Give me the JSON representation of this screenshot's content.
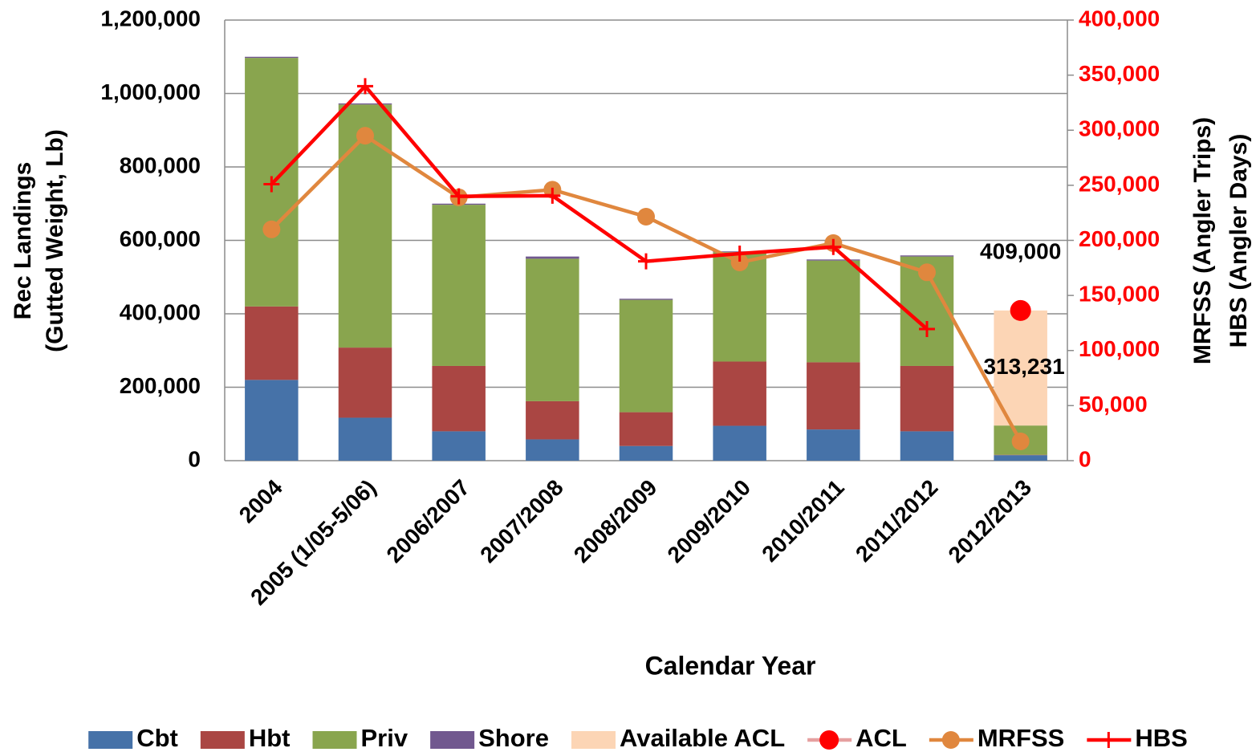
{
  "chart_data": {
    "type": "bar",
    "categories": [
      "2004",
      "2005 (1/05-5/06)",
      "2006/2007",
      "2007/2008",
      "2008/2009",
      "2009/2010",
      "2010/2011",
      "2011/2012",
      "2012/2013"
    ],
    "series": [
      {
        "name": "Cbt",
        "color": "#4672a8",
        "kind": "bar",
        "values": [
          220000,
          117000,
          80000,
          58000,
          40000,
          95000,
          85000,
          80000,
          15000
        ]
      },
      {
        "name": "Hbt",
        "color": "#aa4643",
        "kind": "bar",
        "values": [
          200000,
          191000,
          178000,
          104000,
          92000,
          175000,
          183000,
          178000,
          1000
        ]
      },
      {
        "name": "Priv",
        "color": "#89a54e",
        "kind": "bar",
        "values": [
          677000,
          662000,
          439000,
          388000,
          306000,
          298000,
          277000,
          298000,
          79769
        ]
      },
      {
        "name": "Shore",
        "color": "#71588f",
        "kind": "bar",
        "values": [
          3000,
          3000,
          3000,
          6000,
          3000,
          2000,
          3000,
          3000,
          0
        ]
      },
      {
        "name": "Available ACL",
        "color": "#fcd5b5",
        "kind": "bar",
        "values": [
          null,
          null,
          null,
          null,
          null,
          null,
          null,
          null,
          313231
        ],
        "value_labels": [
          null,
          null,
          null,
          null,
          null,
          null,
          null,
          null,
          "313,231"
        ]
      },
      {
        "name": "ACL",
        "color": "#ff0000",
        "kind": "marker",
        "marker": "circle",
        "values": [
          null,
          null,
          null,
          null,
          null,
          null,
          null,
          null,
          409000
        ],
        "value_labels": [
          null,
          null,
          null,
          null,
          null,
          null,
          null,
          null,
          "409,000"
        ]
      },
      {
        "name": "MRFSS",
        "color": "#e0873e",
        "kind": "line",
        "marker": "circle",
        "axis": "y2",
        "values": [
          210000,
          295000,
          239000,
          246000,
          221500,
          180000,
          197500,
          171000,
          17500
        ]
      },
      {
        "name": "HBS",
        "color": "#ff0000",
        "kind": "line",
        "marker": "plus",
        "axis": "y2",
        "values": [
          251000,
          340000,
          240000,
          240500,
          181000,
          188000,
          194000,
          119500,
          null
        ]
      }
    ],
    "ylim": [
      0,
      1200000
    ],
    "yticks": [
      0,
      {
        "value": 200000,
        "label": "200,000"
      },
      {
        "value": 400000,
        "label": "400,000"
      },
      {
        "value": 600000,
        "label": "600,000"
      },
      {
        "value": 800000,
        "label": "800,000"
      },
      {
        "value": 1000000,
        "label": "1,000,000"
      },
      {
        "value": 1200000,
        "label": "1,200,000"
      }
    ],
    "y2lim": [
      0,
      400000
    ],
    "y2ticks": [
      0,
      {
        "value": 50000,
        "label": "50,000"
      },
      {
        "value": 100000,
        "label": "100,000"
      },
      {
        "value": 150000,
        "label": "150,000"
      },
      {
        "value": 200000,
        "label": "200,000"
      },
      {
        "value": 250000,
        "label": "250,000"
      },
      {
        "value": 300000,
        "label": "300,000"
      },
      {
        "value": 350000,
        "label": "350,000"
      },
      {
        "value": 400000,
        "label": "400,000"
      }
    ],
    "y2_color": "#ff0000",
    "ylabel": [
      "Rec Landings",
      "(Gutted Weight, Lb)"
    ],
    "y2label": [
      "MRFSS (Angler Trips)",
      "HBS (Angler Days)"
    ],
    "xlabel": "Calendar Year",
    "grid": true,
    "legend": "bottom"
  }
}
